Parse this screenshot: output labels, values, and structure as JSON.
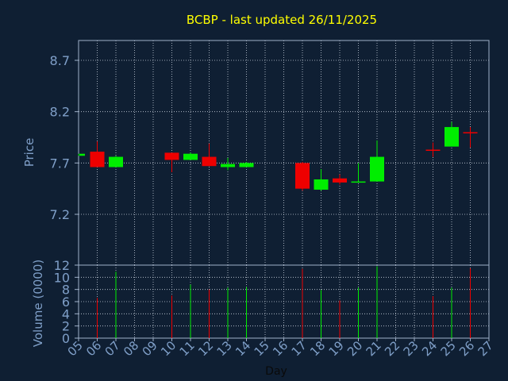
{
  "chart_data": {
    "type": "candlestick",
    "title": "BCBP - last updated 26/11/2025",
    "xlabel": "Day",
    "ylabel_price": "Price",
    "ylabel_volume": "Volume (0000)",
    "price_ticks": [
      "7.2",
      "7.7",
      "8.2",
      "8.7"
    ],
    "price_tick_values": [
      7.2,
      7.7,
      8.2,
      8.7
    ],
    "ylim_price": [
      7.2,
      8.7
    ],
    "volume_ticks": [
      "0",
      "2",
      "4",
      "6",
      "8",
      "10",
      "12"
    ],
    "volume_tick_values": [
      0,
      2,
      4,
      6,
      8,
      10,
      12
    ],
    "ylim_volume": [
      0,
      12
    ],
    "x_ticks": [
      "05",
      "06",
      "07",
      "08",
      "09",
      "10",
      "11",
      "12",
      "13",
      "14",
      "15",
      "16",
      "17",
      "18",
      "19",
      "20",
      "21",
      "22",
      "23",
      "24",
      "25",
      "26",
      "27"
    ],
    "x_tick_values": [
      5,
      6,
      7,
      8,
      9,
      10,
      11,
      12,
      13,
      14,
      15,
      16,
      17,
      18,
      19,
      20,
      21,
      22,
      23,
      24,
      25,
      26,
      27
    ],
    "grid": true,
    "colors": {
      "up": "#00ee00",
      "down": "#ee0000",
      "title": "#ffff00",
      "axis_text": "#7f9fc8",
      "frame": "#9fb0c8",
      "background": "#0f1f33"
    },
    "candles": [
      {
        "day": 5,
        "open": 7.77,
        "close": 7.79,
        "high": 7.79,
        "low": 7.77,
        "volume": 0
      },
      {
        "day": 6,
        "open": 7.81,
        "close": 7.66,
        "high": 7.91,
        "low": 7.66,
        "volume": 6.6
      },
      {
        "day": 7,
        "open": 7.66,
        "close": 7.76,
        "high": 7.77,
        "low": 7.66,
        "volume": 10.9
      },
      {
        "day": 10,
        "open": 7.8,
        "close": 7.73,
        "high": 7.8,
        "low": 7.61,
        "volume": 7.0
      },
      {
        "day": 11,
        "open": 7.73,
        "close": 7.79,
        "high": 7.8,
        "low": 7.73,
        "volume": 8.8
      },
      {
        "day": 12,
        "open": 7.76,
        "close": 7.67,
        "high": 7.89,
        "low": 7.67,
        "volume": 8.0
      },
      {
        "day": 13,
        "open": 7.66,
        "close": 7.69,
        "high": 7.75,
        "low": 7.63,
        "volume": 8.3
      },
      {
        "day": 14,
        "open": 7.66,
        "close": 7.7,
        "high": 7.71,
        "low": 7.66,
        "volume": 8.4
      },
      {
        "day": 17,
        "open": 7.7,
        "close": 7.45,
        "high": 7.71,
        "low": 7.43,
        "volume": 11.4
      },
      {
        "day": 18,
        "open": 7.44,
        "close": 7.54,
        "high": 7.64,
        "low": 7.43,
        "volume": 7.9
      },
      {
        "day": 19,
        "open": 7.55,
        "close": 7.51,
        "high": 7.59,
        "low": 7.49,
        "volume": 6.2
      },
      {
        "day": 20,
        "open": 7.51,
        "close": 7.52,
        "high": 7.7,
        "low": 7.51,
        "volume": 8.3
      },
      {
        "day": 21,
        "open": 7.52,
        "close": 7.76,
        "high": 7.92,
        "low": 7.52,
        "volume": 11.8
      },
      {
        "day": 24,
        "open": 7.83,
        "close": 7.83,
        "high": 7.9,
        "low": 7.76,
        "volume": 6.9
      },
      {
        "day": 25,
        "open": 7.86,
        "close": 8.05,
        "high": 8.1,
        "low": 7.86,
        "volume": 8.3
      },
      {
        "day": 26,
        "open": 8.0,
        "close": 8.0,
        "high": 8.05,
        "low": 7.85,
        "volume": 11.5
      }
    ]
  }
}
